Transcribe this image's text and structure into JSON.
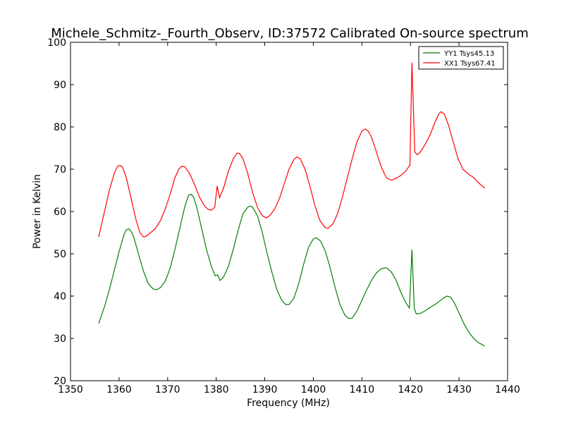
{
  "chart_data": {
    "type": "line",
    "title": "Michele_Schmitz-_Fourth_Observ, ID:37572 Calibrated On-source spectrum",
    "xlabel": "Frequency (MHz)",
    "ylabel": "Power in Kelvin",
    "xlim": [
      1350,
      1440
    ],
    "ylim": [
      20,
      100
    ],
    "xticks": [
      1350,
      1360,
      1370,
      1380,
      1390,
      1400,
      1410,
      1420,
      1430,
      1440
    ],
    "yticks": [
      20,
      30,
      40,
      50,
      60,
      70,
      80,
      90,
      100
    ],
    "grid": false,
    "legend_position": "top-right",
    "series": [
      {
        "name": "YY1 Tsys45.13",
        "color": "#008000",
        "points": [
          [
            1355.8,
            33.5
          ],
          [
            1357.0,
            37.5
          ],
          [
            1358.0,
            41.5
          ],
          [
            1359.0,
            46.0
          ],
          [
            1360.0,
            50.5
          ],
          [
            1361.0,
            54.5
          ],
          [
            1361.5,
            55.7
          ],
          [
            1362.0,
            55.9
          ],
          [
            1362.5,
            55.3
          ],
          [
            1363.0,
            54.0
          ],
          [
            1364.0,
            50.0
          ],
          [
            1365.0,
            46.0
          ],
          [
            1366.0,
            43.0
          ],
          [
            1367.0,
            41.7
          ],
          [
            1367.7,
            41.5
          ],
          [
            1368.5,
            42.0
          ],
          [
            1369.5,
            43.5
          ],
          [
            1370.5,
            46.5
          ],
          [
            1371.5,
            51.0
          ],
          [
            1372.5,
            56.0
          ],
          [
            1373.5,
            61.0
          ],
          [
            1374.3,
            63.8
          ],
          [
            1374.8,
            64.1
          ],
          [
            1375.3,
            63.5
          ],
          [
            1376.0,
            61.0
          ],
          [
            1377.0,
            56.0
          ],
          [
            1378.0,
            51.0
          ],
          [
            1379.0,
            47.0
          ],
          [
            1379.8,
            44.8
          ],
          [
            1380.3,
            45.0
          ],
          [
            1380.8,
            43.7
          ],
          [
            1381.5,
            44.5
          ],
          [
            1382.5,
            47.0
          ],
          [
            1383.5,
            51.0
          ],
          [
            1384.5,
            55.5
          ],
          [
            1385.5,
            59.5
          ],
          [
            1386.5,
            61.0
          ],
          [
            1387.0,
            61.3
          ],
          [
            1387.5,
            61.0
          ],
          [
            1388.5,
            59.0
          ],
          [
            1389.5,
            55.0
          ],
          [
            1390.5,
            50.0
          ],
          [
            1391.5,
            45.5
          ],
          [
            1392.5,
            41.5
          ],
          [
            1393.5,
            39.0
          ],
          [
            1394.3,
            38.0
          ],
          [
            1395.0,
            38.0
          ],
          [
            1396.0,
            39.5
          ],
          [
            1397.0,
            43.0
          ],
          [
            1398.0,
            47.5
          ],
          [
            1399.0,
            51.5
          ],
          [
            1400.0,
            53.5
          ],
          [
            1400.6,
            53.8
          ],
          [
            1401.5,
            53.0
          ],
          [
            1402.5,
            50.5
          ],
          [
            1403.5,
            46.5
          ],
          [
            1404.5,
            42.0
          ],
          [
            1405.5,
            38.0
          ],
          [
            1406.5,
            35.5
          ],
          [
            1407.3,
            34.7
          ],
          [
            1408.0,
            34.8
          ],
          [
            1409.0,
            36.5
          ],
          [
            1410.0,
            39.0
          ],
          [
            1411.0,
            41.5
          ],
          [
            1412.0,
            43.8
          ],
          [
            1413.0,
            45.5
          ],
          [
            1414.0,
            46.5
          ],
          [
            1415.0,
            46.7
          ],
          [
            1416.0,
            45.8
          ],
          [
            1417.0,
            43.8
          ],
          [
            1418.0,
            41.0
          ],
          [
            1419.0,
            38.5
          ],
          [
            1419.8,
            37.2
          ],
          [
            1420.3,
            51.0
          ],
          [
            1420.8,
            37.0
          ],
          [
            1421.2,
            35.8
          ],
          [
            1422.0,
            35.9
          ],
          [
            1423.0,
            36.5
          ],
          [
            1424.0,
            37.3
          ],
          [
            1425.0,
            38.0
          ],
          [
            1426.0,
            38.8
          ],
          [
            1427.0,
            39.7
          ],
          [
            1427.5,
            40.0
          ],
          [
            1428.2,
            39.8
          ],
          [
            1429.0,
            38.5
          ],
          [
            1430.0,
            36.0
          ],
          [
            1431.0,
            33.5
          ],
          [
            1432.0,
            31.5
          ],
          [
            1433.0,
            30.0
          ],
          [
            1434.0,
            29.0
          ],
          [
            1435.3,
            28.2
          ]
        ]
      },
      {
        "name": "XX1 Tsys67.41",
        "color": "#ff0000",
        "points": [
          [
            1355.8,
            54.0
          ],
          [
            1357.0,
            60.0
          ],
          [
            1358.0,
            65.0
          ],
          [
            1359.0,
            69.0
          ],
          [
            1359.7,
            70.7
          ],
          [
            1360.2,
            70.9
          ],
          [
            1360.7,
            70.5
          ],
          [
            1361.5,
            68.0
          ],
          [
            1362.5,
            63.0
          ],
          [
            1363.5,
            58.0
          ],
          [
            1364.3,
            55.0
          ],
          [
            1365.0,
            54.0
          ],
          [
            1365.5,
            54.1
          ],
          [
            1366.5,
            55.0
          ],
          [
            1367.5,
            56.0
          ],
          [
            1368.5,
            57.8
          ],
          [
            1369.5,
            60.5
          ],
          [
            1370.5,
            64.0
          ],
          [
            1371.5,
            68.0
          ],
          [
            1372.3,
            70.0
          ],
          [
            1372.9,
            70.7
          ],
          [
            1373.5,
            70.6
          ],
          [
            1374.5,
            69.0
          ],
          [
            1375.5,
            66.5
          ],
          [
            1376.5,
            63.5
          ],
          [
            1377.5,
            61.5
          ],
          [
            1378.3,
            60.5
          ],
          [
            1379.0,
            60.3
          ],
          [
            1379.7,
            61.0
          ],
          [
            1380.2,
            66.0
          ],
          [
            1380.7,
            63.3
          ],
          [
            1381.5,
            65.5
          ],
          [
            1382.5,
            69.5
          ],
          [
            1383.5,
            72.5
          ],
          [
            1384.3,
            73.8
          ],
          [
            1384.8,
            73.7
          ],
          [
            1385.5,
            72.5
          ],
          [
            1386.5,
            69.0
          ],
          [
            1387.5,
            64.5
          ],
          [
            1388.5,
            61.0
          ],
          [
            1389.5,
            59.0
          ],
          [
            1390.3,
            58.5
          ],
          [
            1391.0,
            59.0
          ],
          [
            1392.0,
            60.5
          ],
          [
            1393.0,
            63.0
          ],
          [
            1394.0,
            66.5
          ],
          [
            1395.0,
            70.0
          ],
          [
            1396.0,
            72.3
          ],
          [
            1396.6,
            72.9
          ],
          [
            1397.3,
            72.5
          ],
          [
            1398.3,
            70.0
          ],
          [
            1399.3,
            66.0
          ],
          [
            1400.3,
            61.5
          ],
          [
            1401.3,
            58.0
          ],
          [
            1402.3,
            56.3
          ],
          [
            1403.0,
            56.0
          ],
          [
            1404.0,
            57.0
          ],
          [
            1405.0,
            59.5
          ],
          [
            1406.0,
            63.5
          ],
          [
            1407.0,
            68.0
          ],
          [
            1408.0,
            72.5
          ],
          [
            1409.0,
            76.5
          ],
          [
            1410.0,
            79.0
          ],
          [
            1410.7,
            79.5
          ],
          [
            1411.3,
            79.0
          ],
          [
            1412.0,
            77.5
          ],
          [
            1413.0,
            74.0
          ],
          [
            1414.0,
            70.5
          ],
          [
            1415.0,
            68.0
          ],
          [
            1416.0,
            67.4
          ],
          [
            1417.0,
            67.8
          ],
          [
            1418.0,
            68.5
          ],
          [
            1419.0,
            69.5
          ],
          [
            1419.9,
            71.0
          ],
          [
            1420.3,
            95.2
          ],
          [
            1420.9,
            74.0
          ],
          [
            1421.4,
            73.4
          ],
          [
            1422.0,
            74.0
          ],
          [
            1423.0,
            75.8
          ],
          [
            1424.0,
            78.0
          ],
          [
            1425.0,
            81.0
          ],
          [
            1425.8,
            83.0
          ],
          [
            1426.3,
            83.6
          ],
          [
            1427.0,
            83.0
          ],
          [
            1427.8,
            80.5
          ],
          [
            1428.8,
            76.5
          ],
          [
            1429.8,
            72.5
          ],
          [
            1430.8,
            70.0
          ],
          [
            1432.0,
            68.8
          ],
          [
            1433.0,
            68.0
          ],
          [
            1434.0,
            66.8
          ],
          [
            1435.3,
            65.5
          ]
        ]
      }
    ]
  }
}
